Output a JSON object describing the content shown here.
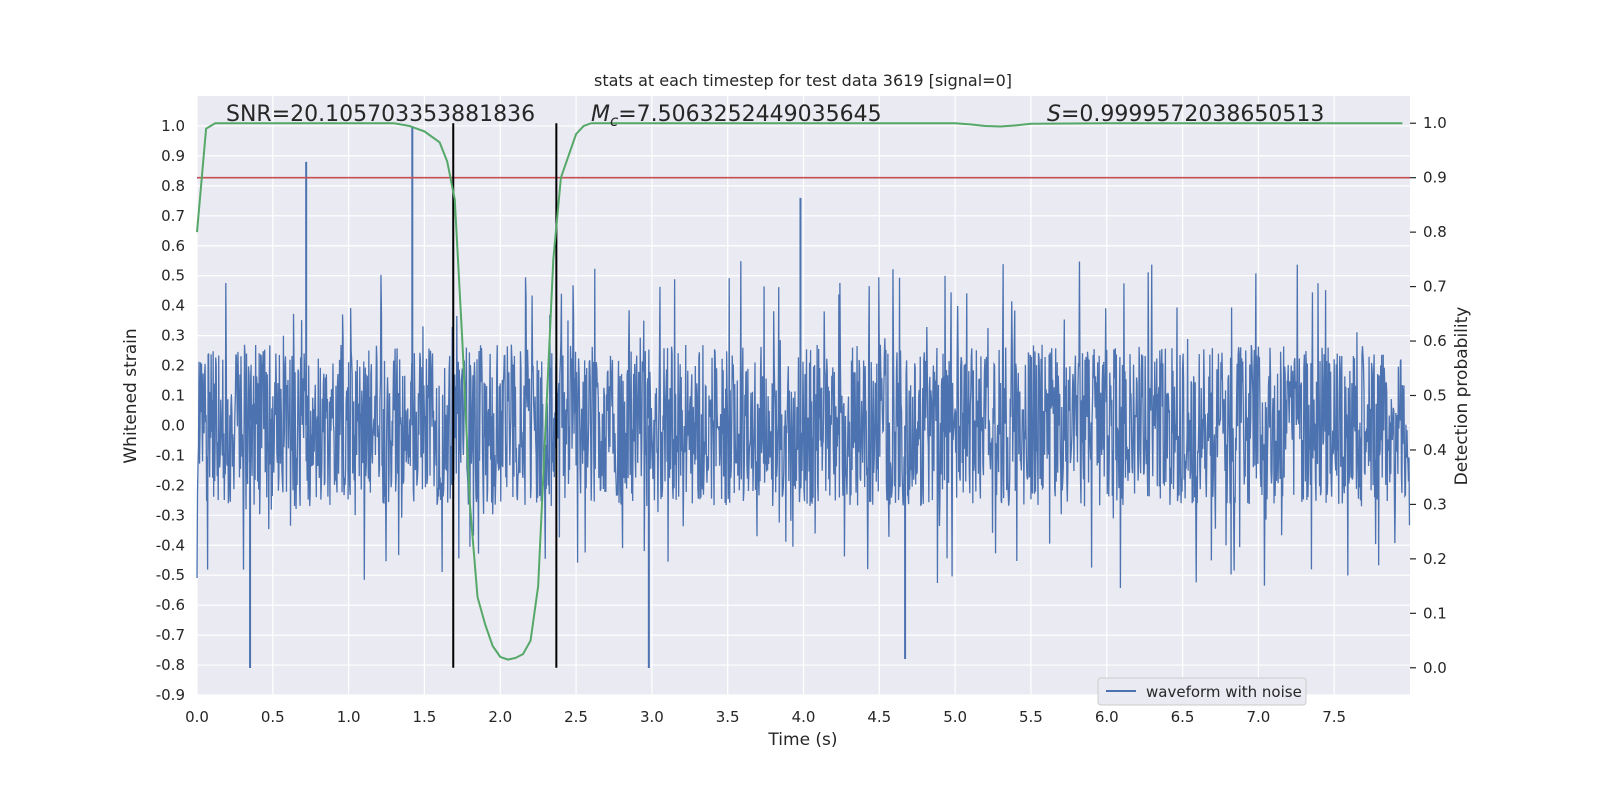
{
  "chart_data": {
    "type": "line",
    "title": "stats at each timestep for test data 3619 [signal=0]",
    "xlabel": "Time (s)",
    "ylabel_left": "Whitened strain",
    "ylabel_right": "Detection probability",
    "xlim": [
      0.0,
      8.0
    ],
    "ylim_left": [
      -0.9,
      1.1
    ],
    "ylim_right": [
      -0.05,
      1.05
    ],
    "x_ticks": [
      "0.0",
      "0.5",
      "1.0",
      "1.5",
      "2.0",
      "2.5",
      "3.0",
      "3.5",
      "4.0",
      "4.5",
      "5.0",
      "5.5",
      "6.0",
      "6.5",
      "7.0",
      "7.5"
    ],
    "y_left_ticks": [
      "-0.9",
      "-0.8",
      "-0.7",
      "-0.6",
      "-0.5",
      "-0.4",
      "-0.3",
      "-0.2",
      "-0.1",
      "0.0",
      "0.1",
      "0.2",
      "0.3",
      "0.4",
      "0.5",
      "0.6",
      "0.7",
      "0.8",
      "0.9",
      "1.0"
    ],
    "y_right_ticks": [
      "0.0",
      "0.1",
      "0.2",
      "0.3",
      "0.4",
      "0.5",
      "0.6",
      "0.7",
      "0.8",
      "0.9",
      "1.0"
    ],
    "grid": true,
    "legend_position": "lower-right",
    "annotations": {
      "snr": "SNR=20.105703353881836",
      "mc_symbol": "M",
      "mc_sub": "c",
      "mc_value": "=7.5063252449035645",
      "s_symbol": "S",
      "s_value": "=0.9999572038650513"
    },
    "series": [
      {
        "name": "waveform with noise",
        "axis": "left",
        "color": "#4c72b0",
        "duration_s": 8.0,
        "noise_envelope": 0.27,
        "notable_peaks": [
          {
            "t": 0.72,
            "v": 0.88
          },
          {
            "t": 1.42,
            "v": 1.0
          },
          {
            "t": 3.98,
            "v": 0.76
          },
          {
            "t": 0.35,
            "v": -0.81
          },
          {
            "t": 2.98,
            "v": -0.81
          },
          {
            "t": 4.67,
            "v": -0.78
          }
        ]
      },
      {
        "axis": "right",
        "color": "#55a868",
        "x": [
          0.0,
          0.06,
          0.12,
          0.2,
          0.3,
          0.5,
          0.8,
          1.0,
          1.2,
          1.3,
          1.4,
          1.5,
          1.6,
          1.65,
          1.7,
          1.75,
          1.8,
          1.85,
          1.9,
          1.95,
          2.0,
          2.05,
          2.1,
          2.15,
          2.2,
          2.25,
          2.3,
          2.35,
          2.4,
          2.45,
          2.5,
          2.55,
          2.6,
          2.7,
          3.0,
          3.5,
          4.0,
          4.5,
          5.0,
          5.1,
          5.2,
          5.3,
          5.4,
          5.5,
          6.0,
          6.5,
          7.0,
          7.5,
          7.95
        ],
        "y": [
          0.8,
          0.99,
          1.0,
          1.0,
          1.0,
          1.0,
          1.0,
          1.0,
          1.0,
          1.0,
          0.995,
          0.985,
          0.965,
          0.93,
          0.86,
          0.6,
          0.3,
          0.13,
          0.08,
          0.04,
          0.02,
          0.015,
          0.018,
          0.025,
          0.05,
          0.15,
          0.45,
          0.75,
          0.9,
          0.94,
          0.98,
          0.995,
          1.0,
          1.0,
          1.0,
          1.0,
          1.0,
          1.0,
          1.0,
          0.998,
          0.995,
          0.994,
          0.996,
          0.999,
          1.0,
          1.0,
          1.0,
          1.0,
          1.0
        ]
      }
    ],
    "threshold_line": {
      "axis": "right",
      "value": 0.9,
      "color": "#c44e52"
    },
    "event_markers": {
      "times": [
        1.69,
        2.37
      ],
      "from_right": 0.0,
      "to_right": 1.0,
      "color": "#000000"
    }
  }
}
